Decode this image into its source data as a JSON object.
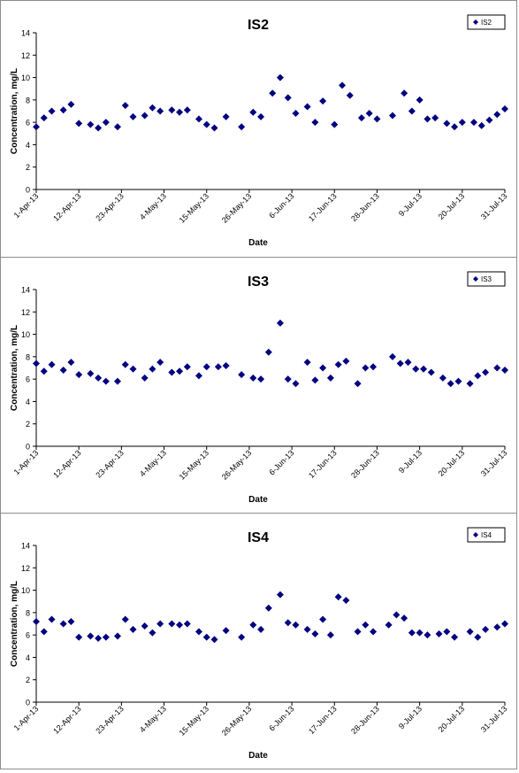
{
  "chart_data": [
    {
      "type": "scatter",
      "title": "IS2",
      "xlabel": "Date",
      "ylabel": "Concentration, mg/L",
      "ylim": [
        0,
        14
      ],
      "yticks": [
        "0",
        "2",
        "4",
        "6",
        "8",
        "10",
        "12",
        "14"
      ],
      "xlim": [
        "2013-04-01",
        "2013-07-31"
      ],
      "xtick_labels": [
        "1-Apr-13",
        "12-Apr-13",
        "23-Apr-13",
        "4-May-13",
        "15-May-13",
        "26-May-13",
        "6-Jun-13",
        "17-Jun-13",
        "28-Jun-13",
        "9-Jul-13",
        "20-Jul-13",
        "31-Jul-13"
      ],
      "legend": "top-right",
      "marker": "diamond",
      "color": "#000080",
      "series": [
        {
          "name": "IS2",
          "points": [
            {
              "x": "2013-04-01",
              "y": 5.6
            },
            {
              "x": "2013-04-03",
              "y": 6.4
            },
            {
              "x": "2013-04-05",
              "y": 7.0
            },
            {
              "x": "2013-04-08",
              "y": 7.1
            },
            {
              "x": "2013-04-10",
              "y": 7.6
            },
            {
              "x": "2013-04-12",
              "y": 5.9
            },
            {
              "x": "2013-04-15",
              "y": 5.8
            },
            {
              "x": "2013-04-17",
              "y": 5.5
            },
            {
              "x": "2013-04-19",
              "y": 6.0
            },
            {
              "x": "2013-04-22",
              "y": 5.6
            },
            {
              "x": "2013-04-24",
              "y": 7.5
            },
            {
              "x": "2013-04-26",
              "y": 6.5
            },
            {
              "x": "2013-04-29",
              "y": 6.6
            },
            {
              "x": "2013-05-01",
              "y": 7.3
            },
            {
              "x": "2013-05-03",
              "y": 7.0
            },
            {
              "x": "2013-05-06",
              "y": 7.1
            },
            {
              "x": "2013-05-08",
              "y": 6.9
            },
            {
              "x": "2013-05-10",
              "y": 7.1
            },
            {
              "x": "2013-05-13",
              "y": 6.3
            },
            {
              "x": "2013-05-15",
              "y": 5.8
            },
            {
              "x": "2013-05-17",
              "y": 5.5
            },
            {
              "x": "2013-05-20",
              "y": 6.5
            },
            {
              "x": "2013-05-24",
              "y": 5.6
            },
            {
              "x": "2013-05-27",
              "y": 6.9
            },
            {
              "x": "2013-05-29",
              "y": 6.5
            },
            {
              "x": "2013-06-01",
              "y": 8.6
            },
            {
              "x": "2013-06-03",
              "y": 10.0
            },
            {
              "x": "2013-06-05",
              "y": 8.2
            },
            {
              "x": "2013-06-07",
              "y": 6.8
            },
            {
              "x": "2013-06-10",
              "y": 7.4
            },
            {
              "x": "2013-06-12",
              "y": 6.0
            },
            {
              "x": "2013-06-14",
              "y": 7.9
            },
            {
              "x": "2013-06-17",
              "y": 5.8
            },
            {
              "x": "2013-06-19",
              "y": 9.3
            },
            {
              "x": "2013-06-21",
              "y": 8.4
            },
            {
              "x": "2013-06-24",
              "y": 6.4
            },
            {
              "x": "2013-06-26",
              "y": 6.8
            },
            {
              "x": "2013-06-28",
              "y": 6.3
            },
            {
              "x": "2013-07-02",
              "y": 6.6
            },
            {
              "x": "2013-07-05",
              "y": 8.6
            },
            {
              "x": "2013-07-07",
              "y": 7.0
            },
            {
              "x": "2013-07-09",
              "y": 8.0
            },
            {
              "x": "2013-07-11",
              "y": 6.3
            },
            {
              "x": "2013-07-13",
              "y": 6.4
            },
            {
              "x": "2013-07-16",
              "y": 5.9
            },
            {
              "x": "2013-07-18",
              "y": 5.6
            },
            {
              "x": "2013-07-20",
              "y": 6.0
            },
            {
              "x": "2013-07-23",
              "y": 6.0
            },
            {
              "x": "2013-07-25",
              "y": 5.7
            },
            {
              "x": "2013-07-27",
              "y": 6.2
            },
            {
              "x": "2013-07-29",
              "y": 6.7
            },
            {
              "x": "2013-07-31",
              "y": 7.2
            }
          ]
        }
      ]
    },
    {
      "type": "scatter",
      "title": "IS3",
      "xlabel": "Date",
      "ylabel": "Concentration, mg/L",
      "ylim": [
        0,
        14
      ],
      "yticks": [
        "0",
        "2",
        "4",
        "6",
        "8",
        "10",
        "12",
        "14"
      ],
      "xlim": [
        "2013-04-01",
        "2013-07-31"
      ],
      "xtick_labels": [
        "1-Apr-13",
        "12-Apr-13",
        "23-Apr-13",
        "4-May-13",
        "15-May-13",
        "26-May-13",
        "6-Jun-13",
        "17-Jun-13",
        "28-Jun-13",
        "9-Jul-13",
        "20-Jul-13",
        "31-Jul-13"
      ],
      "legend": "top-right",
      "marker": "diamond",
      "color": "#000080",
      "series": [
        {
          "name": "IS3",
          "points": [
            {
              "x": "2013-04-01",
              "y": 7.4
            },
            {
              "x": "2013-04-03",
              "y": 6.7
            },
            {
              "x": "2013-04-05",
              "y": 7.3
            },
            {
              "x": "2013-04-08",
              "y": 6.8
            },
            {
              "x": "2013-04-10",
              "y": 7.5
            },
            {
              "x": "2013-04-12",
              "y": 6.4
            },
            {
              "x": "2013-04-15",
              "y": 6.5
            },
            {
              "x": "2013-04-17",
              "y": 6.1
            },
            {
              "x": "2013-04-19",
              "y": 5.8
            },
            {
              "x": "2013-04-22",
              "y": 5.8
            },
            {
              "x": "2013-04-24",
              "y": 7.3
            },
            {
              "x": "2013-04-26",
              "y": 6.9
            },
            {
              "x": "2013-04-29",
              "y": 6.1
            },
            {
              "x": "2013-05-01",
              "y": 6.9
            },
            {
              "x": "2013-05-03",
              "y": 7.5
            },
            {
              "x": "2013-05-06",
              "y": 6.6
            },
            {
              "x": "2013-05-08",
              "y": 6.7
            },
            {
              "x": "2013-05-10",
              "y": 7.1
            },
            {
              "x": "2013-05-13",
              "y": 6.3
            },
            {
              "x": "2013-05-15",
              "y": 7.1
            },
            {
              "x": "2013-05-18",
              "y": 7.1
            },
            {
              "x": "2013-05-20",
              "y": 7.2
            },
            {
              "x": "2013-05-24",
              "y": 6.4
            },
            {
              "x": "2013-05-27",
              "y": 6.1
            },
            {
              "x": "2013-05-29",
              "y": 6.0
            },
            {
              "x": "2013-05-31",
              "y": 8.4
            },
            {
              "x": "2013-06-03",
              "y": 11.0
            },
            {
              "x": "2013-06-05",
              "y": 6.0
            },
            {
              "x": "2013-06-07",
              "y": 5.6
            },
            {
              "x": "2013-06-10",
              "y": 7.5
            },
            {
              "x": "2013-06-12",
              "y": 5.9
            },
            {
              "x": "2013-06-14",
              "y": 7.0
            },
            {
              "x": "2013-06-16",
              "y": 6.1
            },
            {
              "x": "2013-06-18",
              "y": 7.3
            },
            {
              "x": "2013-06-20",
              "y": 7.6
            },
            {
              "x": "2013-06-23",
              "y": 5.6
            },
            {
              "x": "2013-06-25",
              "y": 7.0
            },
            {
              "x": "2013-06-27",
              "y": 7.1
            },
            {
              "x": "2013-07-02",
              "y": 8.0
            },
            {
              "x": "2013-07-04",
              "y": 7.4
            },
            {
              "x": "2013-07-06",
              "y": 7.5
            },
            {
              "x": "2013-07-08",
              "y": 6.9
            },
            {
              "x": "2013-07-10",
              "y": 6.9
            },
            {
              "x": "2013-07-12",
              "y": 6.6
            },
            {
              "x": "2013-07-15",
              "y": 6.1
            },
            {
              "x": "2013-07-17",
              "y": 5.6
            },
            {
              "x": "2013-07-19",
              "y": 5.8
            },
            {
              "x": "2013-07-22",
              "y": 5.6
            },
            {
              "x": "2013-07-24",
              "y": 6.3
            },
            {
              "x": "2013-07-26",
              "y": 6.6
            },
            {
              "x": "2013-07-29",
              "y": 7.0
            },
            {
              "x": "2013-07-31",
              "y": 6.8
            }
          ]
        }
      ]
    },
    {
      "type": "scatter",
      "title": "IS4",
      "xlabel": "Date",
      "ylabel": "Concentration, mg/L",
      "ylim": [
        0,
        14
      ],
      "yticks": [
        "0",
        "2",
        "4",
        "6",
        "8",
        "10",
        "12",
        "14"
      ],
      "xlim": [
        "2013-04-01",
        "2013-07-31"
      ],
      "xtick_labels": [
        "1-Apr-13",
        "12-Apr-13",
        "23-Apr-13",
        "4-May-13",
        "15-May-13",
        "26-May-13",
        "6-Jun-13",
        "17-Jun-13",
        "28-Jun-13",
        "9-Jul-13",
        "20-Jul-13",
        "31-Jul-13"
      ],
      "legend": "top-right",
      "marker": "diamond",
      "color": "#000080",
      "series": [
        {
          "name": "IS4",
          "points": [
            {
              "x": "2013-04-01",
              "y": 7.2
            },
            {
              "x": "2013-04-03",
              "y": 6.3
            },
            {
              "x": "2013-04-05",
              "y": 7.4
            },
            {
              "x": "2013-04-08",
              "y": 7.0
            },
            {
              "x": "2013-04-10",
              "y": 7.2
            },
            {
              "x": "2013-04-12",
              "y": 5.8
            },
            {
              "x": "2013-04-15",
              "y": 5.9
            },
            {
              "x": "2013-04-17",
              "y": 5.7
            },
            {
              "x": "2013-04-19",
              "y": 5.8
            },
            {
              "x": "2013-04-22",
              "y": 5.9
            },
            {
              "x": "2013-04-24",
              "y": 7.4
            },
            {
              "x": "2013-04-26",
              "y": 6.5
            },
            {
              "x": "2013-04-29",
              "y": 6.8
            },
            {
              "x": "2013-05-01",
              "y": 6.2
            },
            {
              "x": "2013-05-03",
              "y": 7.0
            },
            {
              "x": "2013-05-06",
              "y": 7.0
            },
            {
              "x": "2013-05-08",
              "y": 6.9
            },
            {
              "x": "2013-05-10",
              "y": 7.0
            },
            {
              "x": "2013-05-13",
              "y": 6.3
            },
            {
              "x": "2013-05-15",
              "y": 5.8
            },
            {
              "x": "2013-05-17",
              "y": 5.6
            },
            {
              "x": "2013-05-20",
              "y": 6.4
            },
            {
              "x": "2013-05-24",
              "y": 5.8
            },
            {
              "x": "2013-05-27",
              "y": 6.9
            },
            {
              "x": "2013-05-29",
              "y": 6.5
            },
            {
              "x": "2013-05-31",
              "y": 8.4
            },
            {
              "x": "2013-06-03",
              "y": 9.6
            },
            {
              "x": "2013-06-05",
              "y": 7.1
            },
            {
              "x": "2013-06-07",
              "y": 6.9
            },
            {
              "x": "2013-06-10",
              "y": 6.5
            },
            {
              "x": "2013-06-12",
              "y": 6.1
            },
            {
              "x": "2013-06-14",
              "y": 7.4
            },
            {
              "x": "2013-06-16",
              "y": 6.0
            },
            {
              "x": "2013-06-18",
              "y": 9.4
            },
            {
              "x": "2013-06-20",
              "y": 9.1
            },
            {
              "x": "2013-06-23",
              "y": 6.3
            },
            {
              "x": "2013-06-25",
              "y": 6.9
            },
            {
              "x": "2013-06-27",
              "y": 6.3
            },
            {
              "x": "2013-07-01",
              "y": 6.9
            },
            {
              "x": "2013-07-03",
              "y": 7.8
            },
            {
              "x": "2013-07-05",
              "y": 7.5
            },
            {
              "x": "2013-07-07",
              "y": 6.2
            },
            {
              "x": "2013-07-09",
              "y": 6.2
            },
            {
              "x": "2013-07-11",
              "y": 6.0
            },
            {
              "x": "2013-07-14",
              "y": 6.1
            },
            {
              "x": "2013-07-16",
              "y": 6.3
            },
            {
              "x": "2013-07-18",
              "y": 5.8
            },
            {
              "x": "2013-07-22",
              "y": 6.3
            },
            {
              "x": "2013-07-24",
              "y": 5.8
            },
            {
              "x": "2013-07-26",
              "y": 6.5
            },
            {
              "x": "2013-07-29",
              "y": 6.7
            },
            {
              "x": "2013-07-31",
              "y": 7.0
            }
          ]
        }
      ]
    }
  ]
}
